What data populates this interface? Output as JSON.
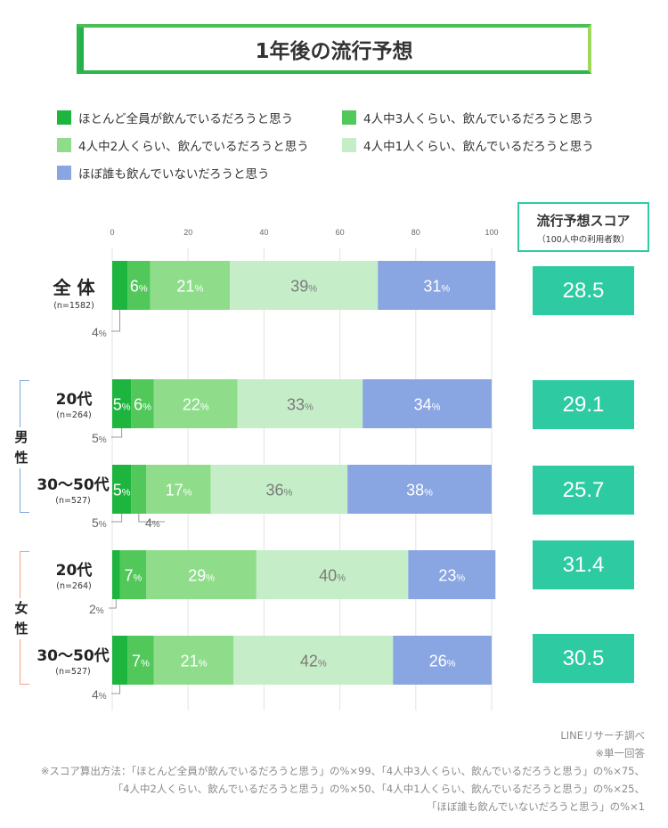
{
  "title": "1年後の流行予想",
  "colors": {
    "s1": "#1db53d",
    "s2": "#52c85b",
    "s3": "#8fdd8a",
    "s4": "#c5eec8",
    "s5": "#8aa6e2",
    "score": "#2ecba2",
    "male": "#7ea6dc",
    "female": "#f0a08a"
  },
  "score_header": {
    "title": "流行予想スコア",
    "subtitle": "（100人中の利用者数）"
  },
  "groups": {
    "male": "男\n性",
    "female": "女\n性"
  },
  "rows": [
    {
      "label": "全 体",
      "n": "(n=1582)",
      "score": "28.5"
    },
    {
      "label": "20代",
      "n": "(n=264)",
      "score": "29.1"
    },
    {
      "label": "30〜50代",
      "n": "(n=527)",
      "score": "25.7"
    },
    {
      "label": "20代",
      "n": "(n=264)",
      "score": "31.4"
    },
    {
      "label": "30〜50代",
      "n": "(n=527)",
      "score": "30.5"
    }
  ],
  "footer": {
    "source": "LINEリサーチ調べ",
    "note": "※単一回答",
    "formula1": "※スコア算出方法：「ほとんど全員が飲んでいるだろうと思う」の%×99、「4人中3人くらい、飲んでいるだろうと思う」の%×75、",
    "formula2": "「4人中2人くらい、飲んでいるだろうと思う」の%×50、「4人中1人くらい、飲んでいるだろうと思う」の%×25、",
    "formula3": "「ほぼ誰も飲んでいないだろうと思う」の%×1"
  },
  "chart_data": {
    "type": "bar",
    "orientation": "horizontal",
    "stacked": true,
    "xlim": [
      0,
      100
    ],
    "xticks": [
      0,
      20,
      40,
      60,
      80,
      100
    ],
    "grid": true,
    "legend_position": "top",
    "value_suffix": "%",
    "categories": [
      "全 体",
      "20代",
      "30〜50代",
      "20代",
      "30〜50代"
    ],
    "series": [
      {
        "name": "ほとんど全員が飲んでいるだろうと思う",
        "values": [
          4,
          5,
          5,
          2,
          4
        ],
        "color": "#1db53d"
      },
      {
        "name": "4人中3人くらい、飲んでいるだろうと思う",
        "values": [
          6,
          6,
          4,
          7,
          7
        ],
        "color": "#52c85b"
      },
      {
        "name": "4人中2人くらい、飲んでいるだろうと思う",
        "values": [
          21,
          22,
          17,
          29,
          21
        ],
        "color": "#8fdd8a"
      },
      {
        "name": "4人中1人くらい、飲んでいるだろうと思う",
        "values": [
          39,
          33,
          36,
          40,
          42
        ],
        "color": "#c5eec8"
      },
      {
        "name": "ほぼ誰も飲んでいないだろうと思う",
        "values": [
          31,
          34,
          38,
          23,
          26
        ],
        "color": "#8aa6e2"
      }
    ]
  }
}
